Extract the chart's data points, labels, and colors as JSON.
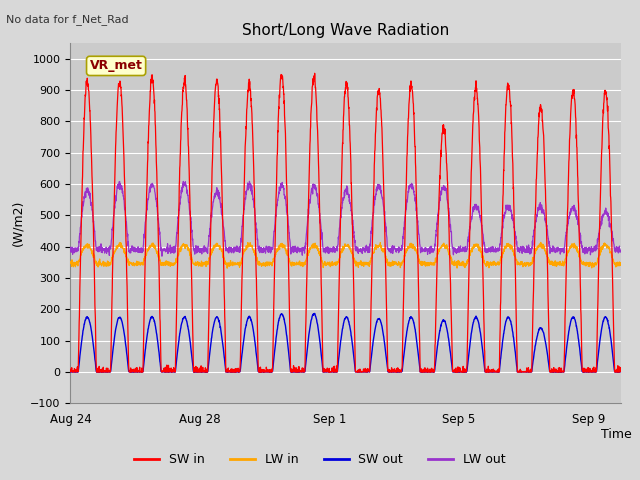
{
  "title": "Short/Long Wave Radiation",
  "subtitle": "No data for f_Net_Rad",
  "ylabel": "(W/m2)",
  "xlabel": "Time",
  "ylim": [
    -100,
    1050
  ],
  "yticks": [
    -100,
    0,
    100,
    200,
    300,
    400,
    500,
    600,
    700,
    800,
    900,
    1000
  ],
  "xtick_labels": [
    "Aug 24",
    "Aug 28",
    "Sep 1",
    "Sep 5",
    "Sep 9"
  ],
  "xtick_positions": [
    0,
    4,
    8,
    12,
    16
  ],
  "background_color": "#d8d8d8",
  "plot_bg_color": "#d0d0d0",
  "grid_color": "#ffffff",
  "sw_in_color": "#ff0000",
  "lw_in_color": "#ffa500",
  "sw_out_color": "#0000dd",
  "lw_out_color": "#9933cc",
  "legend_label_sw_in": "SW in",
  "legend_label_lw_in": "LW in",
  "legend_label_sw_out": "SW out",
  "legend_label_lw_out": "LW out",
  "station_label": "VR_met",
  "n_days": 17,
  "points_per_day": 144,
  "sw_in_peaks": [
    930,
    930,
    935,
    930,
    930,
    915,
    950,
    940,
    920,
    900,
    920,
    780,
    910,
    920,
    845,
    900,
    895
  ],
  "lw_in_base": 345,
  "lw_in_night_base": 345,
  "lw_in_day_peak": 405,
  "sw_out_peaks": [
    175,
    175,
    175,
    175,
    175,
    175,
    185,
    185,
    175,
    170,
    175,
    165,
    175,
    175,
    140,
    175,
    175
  ],
  "lw_out_night_base": 390,
  "lw_out_day_peak": [
    580,
    600,
    600,
    600,
    575,
    600,
    595,
    595,
    580,
    595,
    600,
    590,
    530,
    530,
    530,
    525,
    510
  ]
}
